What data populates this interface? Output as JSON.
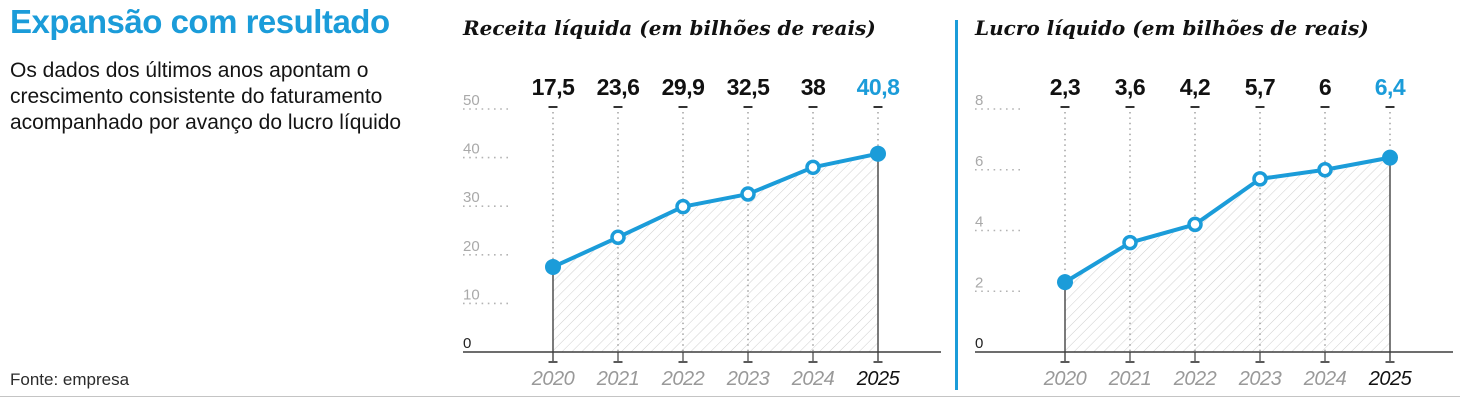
{
  "page": {
    "title": "Expansão com resultado",
    "subtitle_lines": [
      "Os dados dos últimos anos apontam o",
      "crescimento consistente do faturamento",
      "acompanhado por avanço do lucro líquido"
    ],
    "source": "Fonte: empresa",
    "accent_color": "#1b9cd9"
  },
  "chart_data": [
    {
      "type": "line",
      "title": "Receita líquida (em bilhões de reais)",
      "x": [
        "2020",
        "2021",
        "2022",
        "2023",
        "2024",
        "2025"
      ],
      "values": [
        17.5,
        23.6,
        29.9,
        32.5,
        38,
        40.8
      ],
      "value_labels": [
        "17,5",
        "23,6",
        "29,9",
        "32,5",
        "38",
        "40,8"
      ],
      "ylim": [
        0,
        50
      ],
      "yticks": [
        0,
        10,
        20,
        30,
        40,
        50
      ],
      "line_color": "#1b9cd9",
      "highlight_last_value": true,
      "hatched_area": true,
      "grid": "dotted"
    },
    {
      "type": "line",
      "title": "Lucro líquido (em bilhões de reais)",
      "x": [
        "2020",
        "2021",
        "2022",
        "2023",
        "2024",
        "2025"
      ],
      "values": [
        2.3,
        3.6,
        4.2,
        5.7,
        6,
        6.4
      ],
      "value_labels": [
        "2,3",
        "3,6",
        "4,2",
        "5,7",
        "6",
        "6,4"
      ],
      "ylim": [
        0,
        8
      ],
      "yticks": [
        0,
        2,
        4,
        6,
        8
      ],
      "line_color": "#1b9cd9",
      "highlight_last_value": true,
      "hatched_area": true,
      "grid": "dotted"
    }
  ]
}
